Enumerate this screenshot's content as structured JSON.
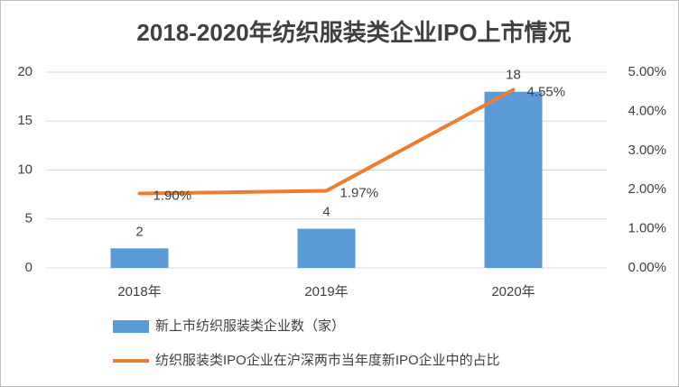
{
  "chart_data": {
    "type": "bar",
    "title": "2018-2020年纺织服装类企业IPO上市情况",
    "categories": [
      "2018年",
      "2019年",
      "2020年"
    ],
    "series": [
      {
        "name": "新上市纺织服装类企业数（家）",
        "type": "bar",
        "color": "#5b9bd5",
        "values": [
          2,
          4,
          18
        ]
      },
      {
        "name": "纺织服装类IPO企业在沪深两市当年度新IPO企业中的占比",
        "type": "line",
        "axis": "y2",
        "color": "#ed7d31",
        "values": [
          1.9,
          1.97,
          4.55
        ],
        "value_labels": [
          "1.90%",
          "1.97%",
          "4.55%"
        ]
      }
    ],
    "ylim": [
      0,
      20
    ],
    "yticks": [
      0,
      5,
      10,
      15,
      20
    ],
    "y2lim": [
      0,
      5
    ],
    "y2ticks": [
      {
        "value": 0,
        "label": "0.00%"
      },
      {
        "value": 1,
        "label": "1.00%"
      },
      {
        "value": 2,
        "label": "2.00%"
      },
      {
        "value": 3,
        "label": "3.00%"
      },
      {
        "value": 4,
        "label": "4.00%"
      },
      {
        "value": 5,
        "label": "5.00%"
      }
    ],
    "grid": true,
    "legend": "bottom"
  }
}
